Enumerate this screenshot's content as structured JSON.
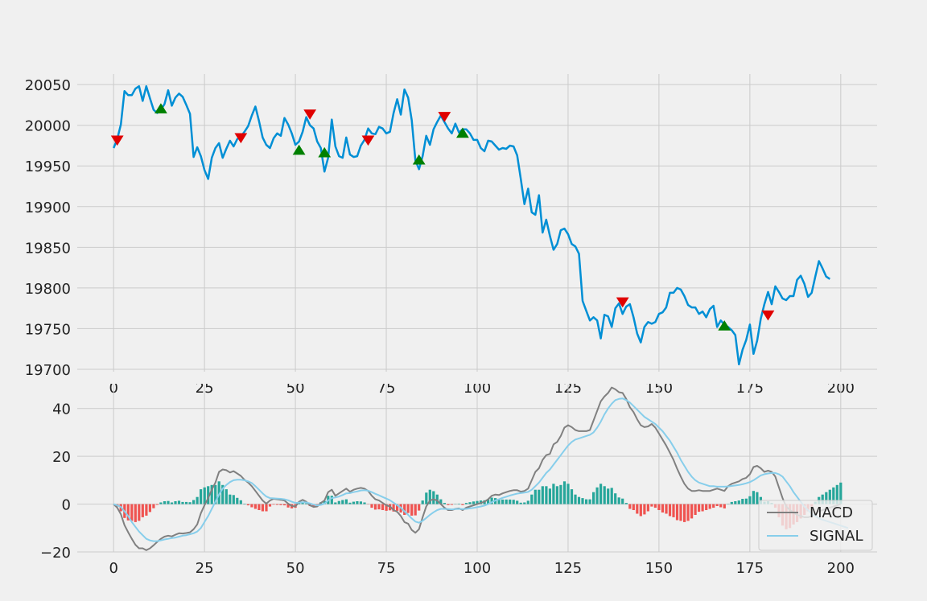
{
  "chart_data": [
    {
      "type": "line",
      "name": "price-panel",
      "title": "",
      "xlabel": "",
      "ylabel": "",
      "xlim": [
        -10,
        210
      ],
      "ylim": [
        19697,
        20063
      ],
      "xticks": [
        0,
        25,
        50,
        75,
        100,
        125,
        150,
        175,
        200
      ],
      "yticks": [
        19700,
        19750,
        19800,
        19850,
        19900,
        19950,
        20000,
        20050
      ],
      "grid": true,
      "colors": {
        "line": "#008fd5",
        "sell": "#e00000",
        "buy": "#008000"
      },
      "series": [
        {
          "values": [
            19972,
            19983,
            20001,
            20042,
            20037,
            20037,
            20045,
            20048,
            20030,
            20048,
            20033,
            20019,
            20015,
            20019,
            20026,
            20043,
            20024,
            20034,
            20039,
            20035,
            20025,
            20014,
            19961,
            19973,
            19962,
            19945,
            19934,
            19960,
            19972,
            19978,
            19960,
            19971,
            19981,
            19974,
            19983,
            19986,
            19992,
            19999,
            20012,
            20023,
            20005,
            19985,
            19976,
            19972,
            19984,
            19990,
            19987,
            20009,
            20001,
            19990,
            19976,
            19980,
            19992,
            20010,
            20000,
            19996,
            19980,
            19972,
            19943,
            19960,
            20007,
            19974,
            19962,
            19960,
            19985,
            19964,
            19961,
            19962,
            19975,
            19982,
            19996,
            19990,
            19989,
            19998,
            19996,
            19990,
            19992,
            20015,
            20032,
            20013,
            20044,
            20034,
            20006,
            19957,
            19946,
            19962,
            19987,
            19976,
            19995,
            20004,
            20012,
            20004,
            19996,
            19990,
            20002,
            19991,
            19995,
            19995,
            19990,
            19982,
            19982,
            19972,
            19968,
            19981,
            19980,
            19975,
            19970,
            19972,
            19971,
            19975,
            19974,
            19963,
            19934,
            19903,
            19922,
            19893,
            19890,
            19914,
            19868,
            19884,
            19864,
            19847,
            19854,
            19871,
            19873,
            19866,
            19854,
            19851,
            19842,
            19784,
            19772,
            19760,
            19764,
            19760,
            19738,
            19767,
            19765,
            19752,
            19775,
            19781,
            19768,
            19777,
            19780,
            19764,
            19744,
            19733,
            19752,
            19758,
            19756,
            19758,
            19768,
            19770,
            19776,
            19794,
            19794,
            19800,
            19798,
            19790,
            19779,
            19776,
            19776,
            19768,
            19771,
            19764,
            19774,
            19778,
            19752,
            19760,
            19755,
            19752,
            19748,
            19742,
            19706,
            19724,
            19736,
            19755,
            19719,
            19735,
            19762,
            19780,
            19795,
            19780,
            19802,
            19795,
            19787,
            19785,
            19790,
            19790,
            19810,
            19815,
            19805,
            19789,
            19794,
            19814,
            19833,
            19824,
            19814,
            19811
          ]
        }
      ],
      "sell_markers": [
        {
          "x": 1,
          "y": 19982
        },
        {
          "x": 35,
          "y": 19985
        },
        {
          "x": 54,
          "y": 20014
        },
        {
          "x": 70,
          "y": 19982
        },
        {
          "x": 91,
          "y": 20011
        },
        {
          "x": 140,
          "y": 19783
        },
        {
          "x": 180,
          "y": 19767
        }
      ],
      "buy_markers": [
        {
          "x": 13,
          "y": 20020
        },
        {
          "x": 51,
          "y": 19969
        },
        {
          "x": 58,
          "y": 19966
        },
        {
          "x": 84,
          "y": 19957
        },
        {
          "x": 96,
          "y": 19990
        },
        {
          "x": 168,
          "y": 19753
        }
      ]
    },
    {
      "type": "bar",
      "name": "macd-panel",
      "title": "",
      "xlabel": "",
      "ylabel": "",
      "xlim": [
        -10,
        210
      ],
      "ylim": [
        -20,
        50
      ],
      "xticks": [
        0,
        25,
        50,
        75,
        100,
        125,
        150,
        175,
        200
      ],
      "yticks": [
        -20,
        0,
        20,
        40
      ],
      "grid": true,
      "legend": {
        "placement": "bottom-right",
        "entries": [
          "MACD",
          "SIGNAL"
        ]
      },
      "colors": {
        "macd": "#808080",
        "signal": "#87ceeb",
        "hist_pos": "#26a69a",
        "hist_neg": "#ef5350"
      },
      "series": [
        {
          "name": "MACD",
          "values": [
            0,
            -1.5,
            -4.2,
            -8.8,
            -11.8,
            -14.5,
            -17.0,
            -18.5,
            -18.5,
            -19.3,
            -18.5,
            -17.2,
            -15.8,
            -14.5,
            -13.6,
            -13.2,
            -13.5,
            -12.8,
            -12.2,
            -12.3,
            -12.1,
            -11.8,
            -10.5,
            -8.5,
            -3.8,
            -0.5,
            2.5,
            6.0,
            9.0,
            13.5,
            14.5,
            14.2,
            13.2,
            13.8,
            12.8,
            11.8,
            10.2,
            9.0,
            7.5,
            5.5,
            3.5,
            1.5,
            0.2,
            1.5,
            2.2,
            2.0,
            1.8,
            1.5,
            0.2,
            -0.8,
            -1.0,
            1.0,
            1.8,
            1.0,
            -0.5,
            -1.2,
            -1.0,
            0.5,
            1.5,
            5.0,
            6.0,
            3.5,
            4.5,
            5.5,
            6.5,
            5.2,
            6.0,
            6.5,
            6.8,
            6.5,
            5.5,
            3.5,
            2.0,
            1.5,
            0.5,
            -0.5,
            -1.0,
            -2.5,
            -3.2,
            -5.0,
            -7.5,
            -8.2,
            -10.8,
            -12.0,
            -10.5,
            -5.5,
            -1.0,
            1.5,
            2.0,
            1.5,
            0.0,
            -1.5,
            -2.5,
            -2.5,
            -2.0,
            -1.8,
            -2.5,
            -1.5,
            -1.0,
            -0.5,
            0.0,
            0.5,
            1.0,
            2.0,
            3.5,
            4.0,
            3.8,
            4.5,
            5.0,
            5.5,
            5.8,
            5.8,
            5.2,
            5.5,
            6.5,
            10.0,
            13.5,
            15.0,
            18.5,
            20.5,
            21.0,
            25.0,
            26.0,
            28.5,
            32.0,
            33.0,
            32.2,
            31.0,
            30.5,
            30.5,
            30.5,
            31.0,
            35.0,
            39.0,
            43.0,
            45.0,
            46.5,
            48.8,
            48.0,
            46.8,
            46.5,
            44.0,
            40.5,
            38.5,
            35.5,
            33.0,
            32.2,
            32.5,
            33.5,
            32.0,
            29.5,
            27.0,
            24.5,
            21.5,
            18.5,
            14.8,
            11.5,
            8.5,
            6.5,
            5.5,
            5.5,
            5.8,
            5.5,
            5.5,
            5.5,
            6.0,
            6.5,
            6.0,
            5.5,
            7.5,
            8.5,
            9.0,
            9.5,
            10.5,
            11.0,
            12.5,
            15.5,
            16.0,
            15.0,
            13.5,
            14.0,
            13.5,
            11.5,
            7.0,
            2.5,
            -1.0,
            -2.5,
            -3.5,
            -4.5,
            -5.0,
            -5.5,
            -5.5,
            -5.0,
            -4.0,
            -3.0,
            -2.5,
            -2.0,
            -1.5,
            -1.0,
            -0.5,
            0.0
          ]
        },
        {
          "name": "SIGNAL",
          "values": [
            0,
            -0.5,
            -1.2,
            -3.0,
            -5.0,
            -7.5,
            -9.5,
            -11.5,
            -13.0,
            -14.5,
            -15.2,
            -15.5,
            -15.5,
            -15.2,
            -14.8,
            -14.5,
            -14.2,
            -14.0,
            -13.6,
            -13.2,
            -13.0,
            -12.6,
            -12.2,
            -11.5,
            -10.0,
            -7.5,
            -5.0,
            -2.0,
            1.0,
            4.0,
            6.5,
            8.0,
            9.2,
            10.0,
            10.2,
            10.2,
            10.0,
            9.5,
            8.8,
            7.5,
            6.0,
            4.5,
            3.2,
            2.5,
            2.4,
            2.3,
            2.2,
            2.0,
            1.6,
            1.0,
            0.5,
            0.6,
            0.8,
            0.7,
            0.3,
            -0.2,
            -0.5,
            -0.3,
            0.2,
            1.5,
            2.5,
            2.8,
            3.2,
            3.8,
            4.5,
            4.6,
            5.0,
            5.3,
            5.7,
            5.8,
            5.6,
            5.0,
            4.3,
            3.7,
            3.0,
            2.3,
            1.6,
            0.6,
            -0.4,
            -1.5,
            -3.0,
            -4.5,
            -6.0,
            -7.3,
            -7.8,
            -7.0,
            -5.8,
            -4.5,
            -3.4,
            -2.5,
            -2.0,
            -2.0,
            -2.1,
            -2.2,
            -2.1,
            -2.0,
            -2.1,
            -2.0,
            -1.8,
            -1.6,
            -1.3,
            -1.0,
            -0.6,
            0.0,
            0.8,
            1.5,
            2.0,
            2.6,
            3.1,
            3.6,
            4.0,
            4.4,
            4.6,
            4.8,
            5.1,
            6.0,
            7.5,
            9.0,
            11.0,
            13.0,
            14.5,
            16.5,
            18.5,
            20.5,
            22.5,
            24.5,
            26.0,
            27.0,
            27.5,
            28.0,
            28.5,
            29.0,
            30.0,
            32.0,
            34.5,
            37.5,
            40.0,
            42.0,
            43.5,
            44.0,
            44.2,
            43.5,
            42.5,
            41.0,
            39.5,
            38.0,
            36.5,
            35.5,
            34.5,
            33.5,
            32.0,
            30.5,
            28.5,
            26.5,
            24.0,
            21.5,
            18.5,
            16.0,
            13.5,
            11.5,
            10.0,
            9.0,
            8.5,
            8.0,
            7.5,
            7.5,
            7.3,
            7.3,
            7.3,
            7.4,
            7.6,
            7.8,
            8.0,
            8.3,
            8.7,
            9.2,
            10.0,
            11.0,
            12.0,
            12.5,
            12.8,
            13.0,
            13.0,
            12.5,
            11.5,
            9.5,
            7.5,
            5.0,
            3.0,
            1.0,
            -1.0,
            -2.5,
            -4.0,
            -5.0,
            -6.0,
            -6.5,
            -7.0,
            -7.5,
            -8.0,
            -8.5,
            -9.0,
            -9.5,
            -10.0
          ]
        }
      ]
    }
  ]
}
